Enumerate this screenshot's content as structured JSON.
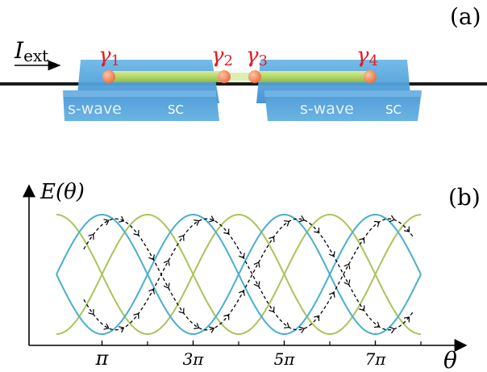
{
  "panel_a": {
    "label": "(a)",
    "current_symbol": "I",
    "current_subscript": "ext",
    "majoranas": [
      "γ",
      "γ",
      "γ",
      "γ"
    ],
    "majorana_indices": [
      "1",
      "2",
      "3",
      "4"
    ],
    "sc_left_text": "s-wave",
    "sc_left_suffix": "SC",
    "sc_right_text": "s-wave",
    "sc_right_suffix": "SC",
    "colors": {
      "block_top": "#5aa9de",
      "block_front": "#3d86c6",
      "wire": "#b7d86a",
      "dot": "#ef8e63",
      "gamma": "#e21b23"
    }
  },
  "panel_b": {
    "label": "(b)",
    "y_label": "E(θ)",
    "x_label": "θ",
    "x_ticks": [
      "π",
      "3π",
      "5π",
      "7π"
    ],
    "colors": {
      "curve_green": "#a9c45a",
      "curve_blue": "#4aaecf",
      "path": "#000000"
    }
  },
  "chart_data": {
    "type": "line",
    "x": [
      0,
      1,
      2,
      3,
      4,
      5,
      6,
      7,
      8
    ],
    "x_unit": "π",
    "series": [
      {
        "values_formula": "+|cos(θ/2)|",
        "color": "#a9c45a"
      },
      {
        "values_formula": "-|cos(θ/2)|",
        "color": "#a9c45a"
      },
      {
        "values_formula": "+|sin(θ/2)|",
        "color": "#4aaecf"
      },
      {
        "values_formula": "-|sin(θ/2)|",
        "color": "#4aaecf"
      }
    ],
    "xticks": [
      "π",
      "3π",
      "5π",
      "7π"
    ],
    "xlabel": "θ",
    "ylabel": "E(θ)"
  }
}
